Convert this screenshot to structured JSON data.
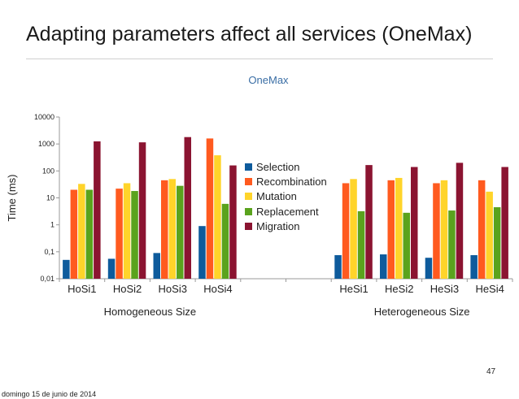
{
  "slide": {
    "title": "Adapting parameters affect all services (OneMax)",
    "page_number": "47",
    "footer_date": "domingo 15 de junio de 2014"
  },
  "chart_data": {
    "type": "bar",
    "title": "OneMax",
    "ylabel": "Time (ms)",
    "xlabel": "",
    "yscale": "log",
    "ylim": [
      0.01,
      10000
    ],
    "yticks": [
      "0,01",
      "0,1",
      "1",
      "10",
      "100",
      "1000",
      "10000"
    ],
    "grid": false,
    "legend_position": "center",
    "categories": [
      "HoSi1",
      "HoSi2",
      "HoSi3",
      "HoSi4",
      "",
      "",
      "HeSi1",
      "HeSi2",
      "HeSi3",
      "HeSi4"
    ],
    "groups": [
      {
        "label": "Homogeneous Size",
        "categories": [
          "HoSi1",
          "HoSi2",
          "HoSi3",
          "HoSi4"
        ]
      },
      {
        "label": "Heterogeneous Size",
        "categories": [
          "HeSi1",
          "HeSi2",
          "HeSi3",
          "HeSi4"
        ]
      }
    ],
    "series": [
      {
        "name": "Selection",
        "color": "#0e5b9c",
        "values": [
          0.05,
          0.055,
          0.09,
          0.9,
          null,
          null,
          0.075,
          0.08,
          0.06,
          0.075
        ]
      },
      {
        "name": "Recombination",
        "color": "#ff5a1f",
        "values": [
          20,
          22,
          45,
          1600,
          null,
          null,
          35,
          45,
          35,
          45
        ]
      },
      {
        "name": "Mutation",
        "color": "#ffd42a",
        "values": [
          33,
          35,
          50,
          380,
          null,
          null,
          50,
          55,
          45,
          17
        ]
      },
      {
        "name": "Replacement",
        "color": "#5aa31d",
        "values": [
          20,
          18,
          28,
          6,
          null,
          null,
          3.2,
          2.8,
          3.4,
          4.5
        ]
      },
      {
        "name": "Migration",
        "color": "#8b1431",
        "values": [
          1250,
          1150,
          1800,
          160,
          null,
          null,
          165,
          140,
          200,
          140
        ]
      }
    ]
  }
}
